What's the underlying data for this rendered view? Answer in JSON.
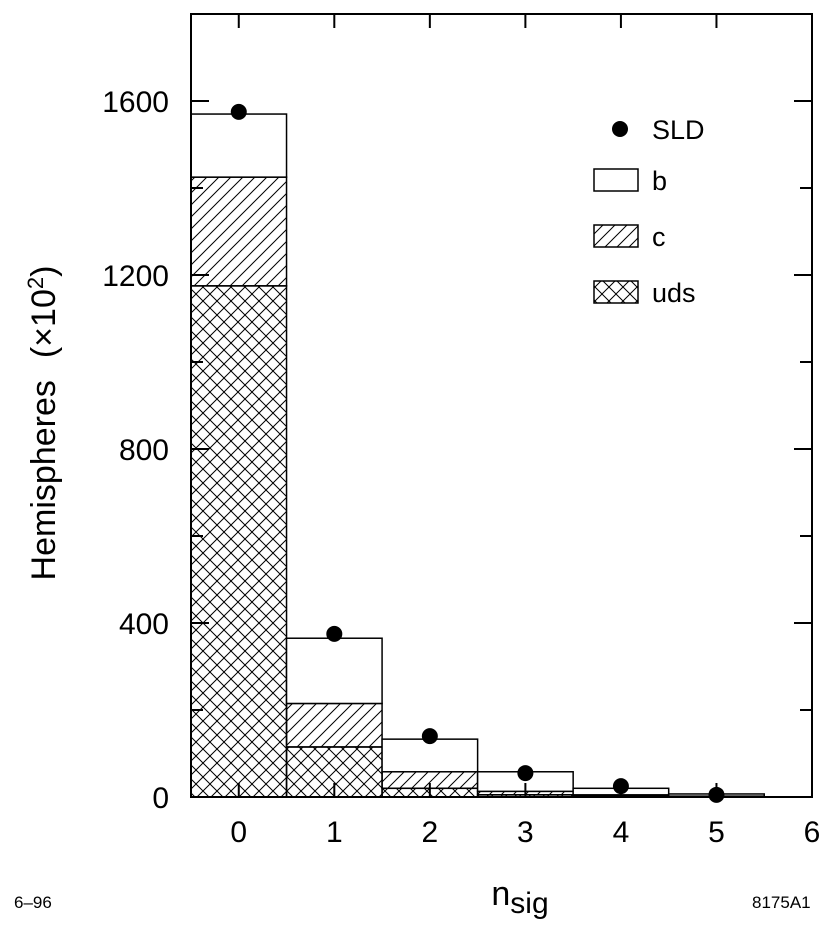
{
  "chart_data": {
    "type": "bar",
    "stacked": true,
    "x": [
      0,
      1,
      2,
      3,
      4,
      5
    ],
    "xlabel": "n",
    "xlabel_sub": "sig",
    "ylabel": "Hemispheres",
    "ylabel_unit_prefix": "(×10",
    "ylabel_unit_exp": "2",
    "ylabel_unit_suffix": ")",
    "xlim": [
      -0.5,
      6
    ],
    "ylim": [
      0,
      1800
    ],
    "xticks": [
      0,
      1,
      2,
      3,
      4,
      5,
      6
    ],
    "yticks": [
      0,
      400,
      800,
      1200,
      1600
    ],
    "series": [
      {
        "name": "uds",
        "kind": "bar",
        "pattern": "crosshatch",
        "values": [
          1175,
          115,
          20,
          5,
          2,
          1
        ]
      },
      {
        "name": "c",
        "kind": "bar",
        "pattern": "hatch",
        "values": [
          250,
          100,
          38,
          8,
          3,
          1
        ]
      },
      {
        "name": "b",
        "kind": "bar",
        "pattern": "open",
        "values": [
          145,
          150,
          75,
          45,
          15,
          5
        ]
      },
      {
        "name": "SLD",
        "kind": "points",
        "values": [
          1575,
          375,
          140,
          55,
          25,
          5
        ]
      }
    ],
    "legend": [
      "SLD",
      "b",
      "c",
      "uds"
    ],
    "legend_position": "top-right",
    "grid": false
  },
  "footnote_left": "6–96",
  "footnote_right": "8175A1"
}
